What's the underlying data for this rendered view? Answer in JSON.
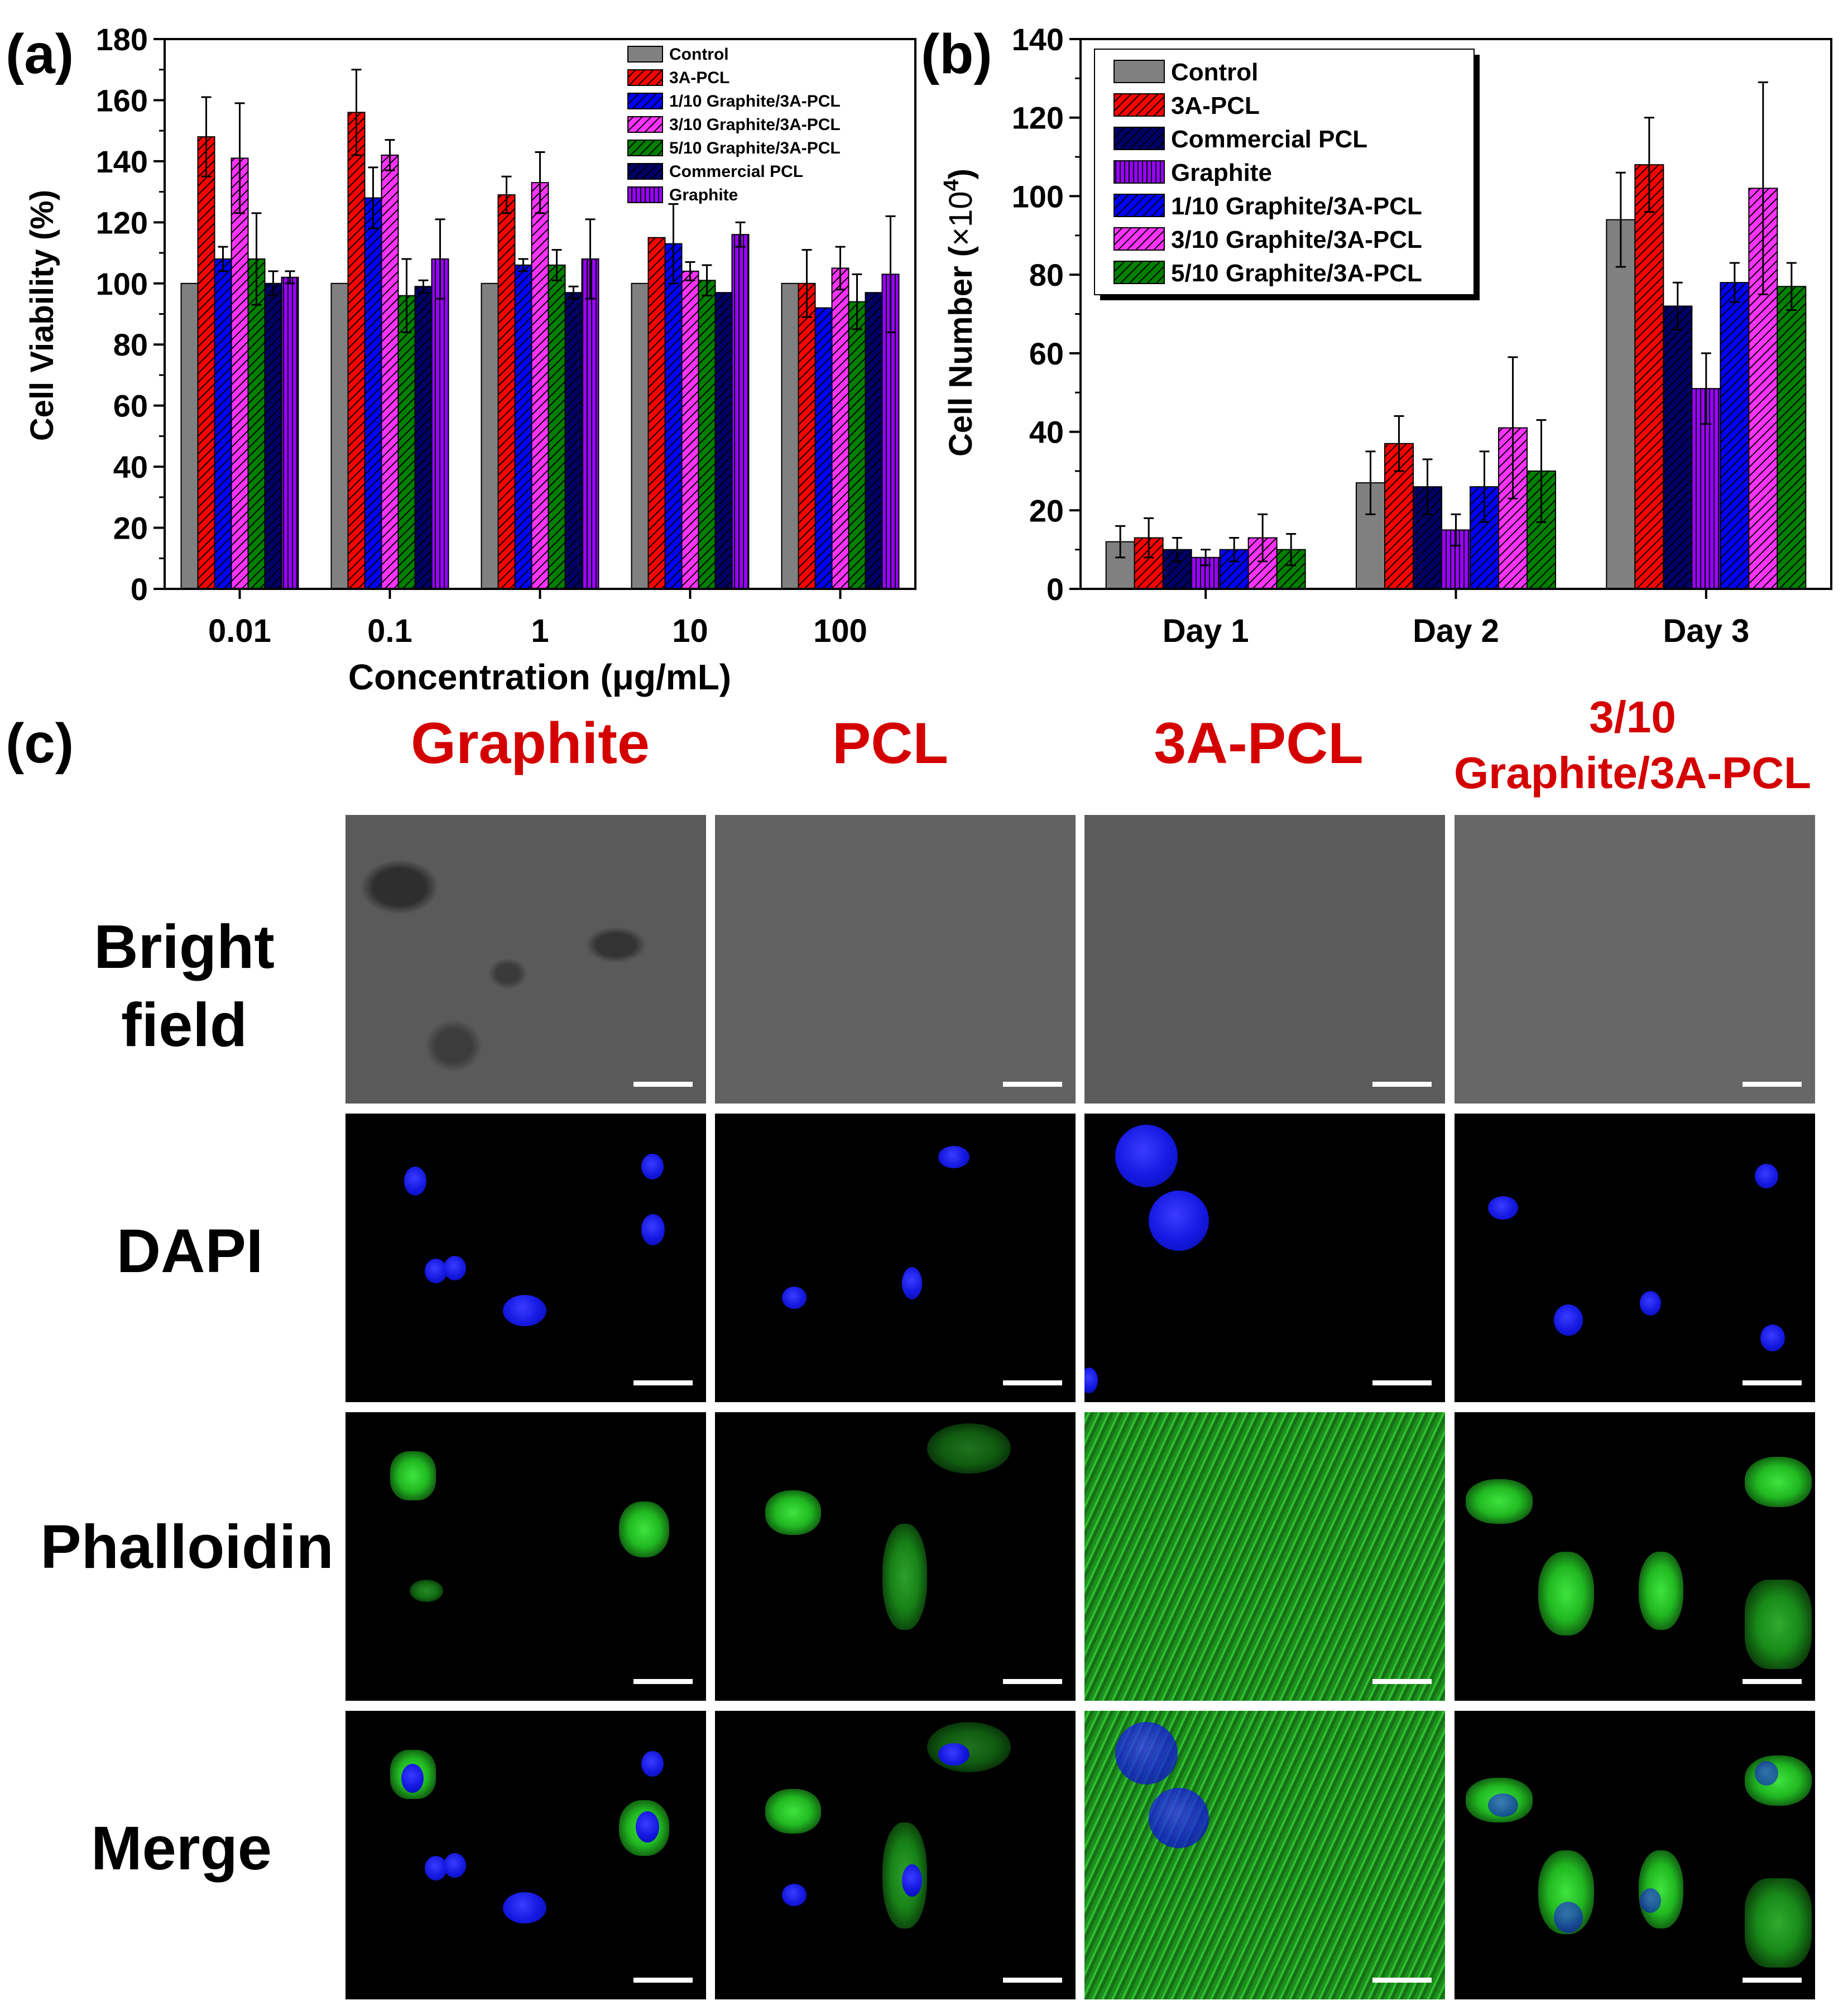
{
  "panels": {
    "a": "(a)",
    "b": "(b)",
    "c": "(c)"
  },
  "chart_data": [
    {
      "type": "bar",
      "ylabel": "Cell Viability (%)",
      "xlabel": "Concentration (μg/mL)",
      "ylim": [
        0,
        180
      ],
      "yticks": [
        0,
        20,
        40,
        60,
        80,
        100,
        120,
        140,
        160,
        180
      ],
      "categories": [
        "0.01",
        "0.1",
        "1",
        "10",
        "100"
      ],
      "legend_position": "top-right",
      "series": [
        {
          "name": "Control",
          "color": "#808080",
          "hatch": "none",
          "values": [
            100,
            100,
            100,
            100,
            100
          ],
          "errors": [
            0,
            0,
            0,
            0,
            0
          ]
        },
        {
          "name": "3A-PCL",
          "color": "#ff0000",
          "hatch": "diag",
          "values": [
            148,
            156,
            129,
            115,
            100
          ],
          "errors": [
            13,
            14,
            6,
            0,
            11
          ]
        },
        {
          "name": "1/10 Graphite/3A-PCL",
          "color": "#0000ff",
          "hatch": "diag",
          "values": [
            108,
            128,
            106,
            113,
            92
          ],
          "errors": [
            4,
            10,
            2,
            13,
            0
          ]
        },
        {
          "name": "3/10 Graphite/3A-PCL",
          "color": "#ff33ff",
          "hatch": "diag",
          "values": [
            141,
            142,
            133,
            104,
            105
          ],
          "errors": [
            18,
            5,
            10,
            3,
            7
          ]
        },
        {
          "name": "5/10 Graphite/3A-PCL",
          "color": "#008000",
          "hatch": "diag",
          "values": [
            108,
            96,
            106,
            101,
            94
          ],
          "errors": [
            15,
            12,
            5,
            5,
            9
          ]
        },
        {
          "name": "Commercial PCL",
          "color": "#000066",
          "hatch": "diag",
          "values": [
            100,
            99,
            97,
            97,
            97
          ],
          "errors": [
            4,
            2,
            2,
            0,
            0
          ]
        },
        {
          "name": "Graphite",
          "color": "#9900ff",
          "hatch": "vert",
          "values": [
            102,
            108,
            108,
            116,
            103
          ],
          "errors": [
            2,
            13,
            13,
            4,
            19
          ]
        }
      ]
    },
    {
      "type": "bar",
      "ylabel_main": "Cell Number (",
      "ylabel_sup_base": "×10",
      "ylabel_sup": "4",
      "ylabel_end": ")",
      "ylim": [
        0,
        140
      ],
      "yticks": [
        0,
        20,
        40,
        60,
        80,
        100,
        120,
        140
      ],
      "categories": [
        "Day 1",
        "Day 2",
        "Day 3"
      ],
      "legend_position": "top-left",
      "series": [
        {
          "name": "Control",
          "color": "#808080",
          "hatch": "none",
          "values": [
            12,
            27,
            94
          ],
          "errors": [
            4,
            8,
            12
          ]
        },
        {
          "name": "3A-PCL",
          "color": "#ff0000",
          "hatch": "diag",
          "values": [
            13,
            37,
            108
          ],
          "errors": [
            5,
            7,
            12
          ]
        },
        {
          "name": "Commercial PCL",
          "color": "#000066",
          "hatch": "diag",
          "values": [
            10,
            26,
            72
          ],
          "errors": [
            3,
            7,
            6
          ]
        },
        {
          "name": "Graphite",
          "color": "#9900ff",
          "hatch": "vert",
          "values": [
            8,
            15,
            51
          ],
          "errors": [
            2,
            4,
            9
          ]
        },
        {
          "name": "1/10 Graphite/3A-PCL",
          "color": "#0000ff",
          "hatch": "diag",
          "values": [
            10,
            26,
            78
          ],
          "errors": [
            3,
            9,
            5
          ]
        },
        {
          "name": "3/10 Graphite/3A-PCL",
          "color": "#ff33ff",
          "hatch": "diag",
          "values": [
            13,
            41,
            102
          ],
          "errors": [
            6,
            18,
            27
          ]
        },
        {
          "name": "5/10 Graphite/3A-PCL",
          "color": "#008000",
          "hatch": "diag",
          "values": [
            10,
            30,
            77
          ],
          "errors": [
            4,
            13,
            6
          ]
        }
      ]
    }
  ],
  "micrograph_grid": {
    "columns": [
      "Graphite",
      "PCL",
      "3A-PCL"
    ],
    "column4_line1": "3/10",
    "column4_line2": "Graphite/3A-PCL",
    "row_bright_1": "Bright",
    "row_bright_2": "field",
    "row_dapi": "DAPI",
    "row_phalloidin": "Phalloidin",
    "row_merge": "Merge"
  }
}
